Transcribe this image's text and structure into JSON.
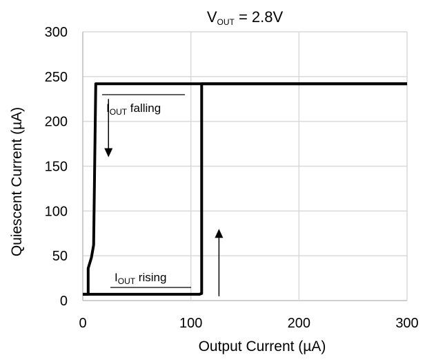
{
  "chart_data": {
    "type": "line",
    "title": {
      "main": "V",
      "sub": "OUT",
      "rest": " = 2.8V"
    },
    "xlabel": "Output Current (µA)",
    "ylabel": "Quiescent Current (µA)",
    "xlim": [
      0,
      300
    ],
    "ylim": [
      0,
      300
    ],
    "xticks": [
      0,
      100,
      200,
      300
    ],
    "yticks": [
      0,
      50,
      100,
      150,
      200,
      250,
      300
    ],
    "grid": true,
    "colors": {
      "line": "#000000",
      "grid": "#d9d9d9",
      "axis": "#bfbfbf"
    },
    "series": [
      {
        "points": [
          [
            0,
            7
          ],
          [
            5,
            7
          ],
          [
            108,
            7
          ],
          [
            110,
            8
          ],
          [
            110,
            242
          ],
          [
            300,
            242
          ]
        ]
      },
      {
        "points": [
          [
            300,
            242
          ],
          [
            12,
            242
          ],
          [
            10,
            62
          ],
          [
            8,
            48
          ],
          [
            5,
            36
          ],
          [
            5,
            7
          ],
          [
            0,
            7
          ]
        ]
      }
    ],
    "annotations": [
      {
        "main": "I",
        "sub": "OUT",
        "rest": " falling",
        "arrow": "down",
        "x": 11,
        "y_from": 225,
        "y_to": 160
      },
      {
        "main": "I",
        "sub": "OUT",
        "rest": " rising",
        "arrow": "up",
        "x": 103,
        "y_from": 28,
        "y_to": 80
      }
    ]
  }
}
